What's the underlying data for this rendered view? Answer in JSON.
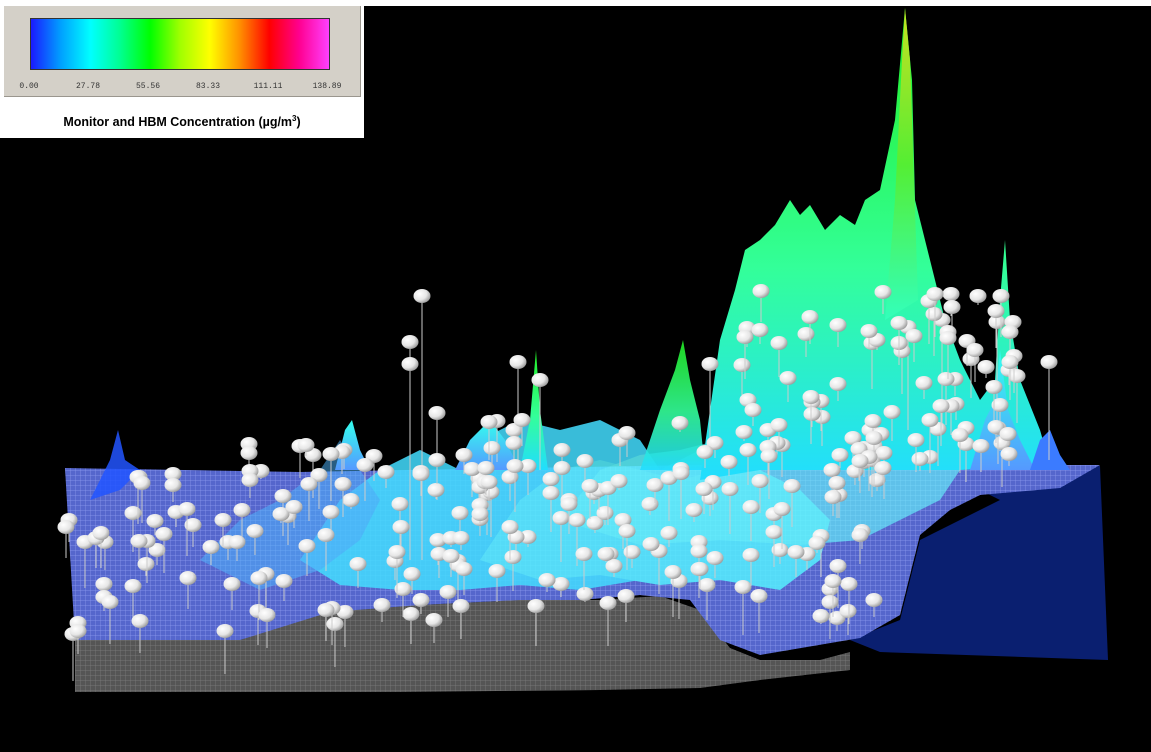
{
  "legend": {
    "ticks": [
      "0.00",
      "27.78",
      "55.56",
      "83.33",
      "111.11",
      "138.89"
    ],
    "title_main": "Monitor and HBM Concentration (µg/m",
    "title_sup": "3",
    "title_end": ")",
    "colors": [
      "#1a1aff",
      "#00a0ff",
      "#00ffff",
      "#00ff90",
      "#00ff00",
      "#a0ff00",
      "#ffff00",
      "#ff9000",
      "#ff0000",
      "#ff0090",
      "#ff40ff"
    ]
  },
  "scene": {
    "colors": {
      "background": "#000000",
      "grid_surface": "#5566cc",
      "grid_lines": "#a8b4ff",
      "water": "#0a1f70",
      "terrain_side": "#555555",
      "spike_cyan": "#33ffee",
      "spike_green": "#22ee33",
      "spike_yellow": "#c8e020",
      "monitor_marker": "#f2f2f2"
    }
  }
}
